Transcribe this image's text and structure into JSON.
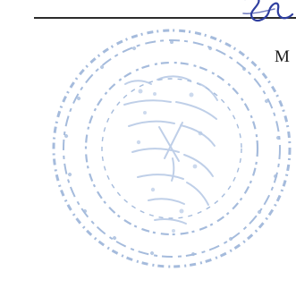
{
  "document": {
    "visible_text": "M",
    "ink_color": "#1a1a1a",
    "stamp_color": "#6f93c8",
    "signature_color": "#2f3fa0"
  },
  "stamp": {
    "visible_text": "",
    "shape": "circular",
    "legible": false
  },
  "signature": {
    "visible_text": "",
    "type": "handwritten"
  }
}
